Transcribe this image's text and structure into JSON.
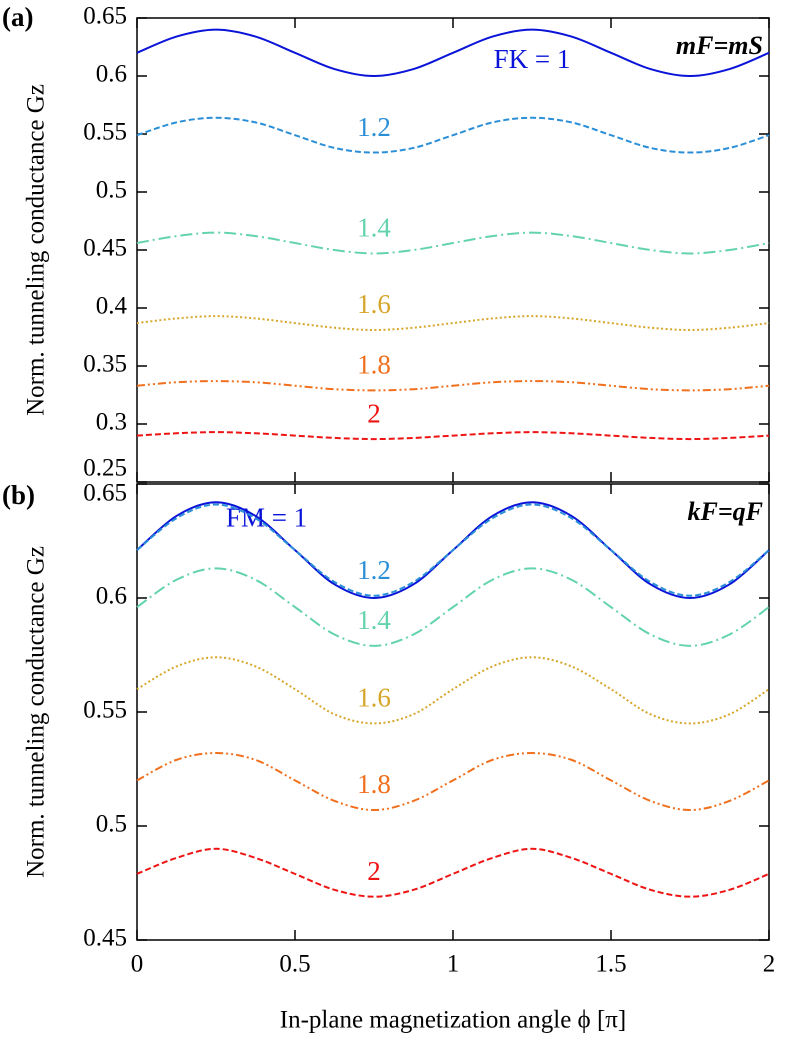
{
  "chart_data": [
    {
      "type": "line",
      "panel_label": "(a)",
      "corner_label": "mF=mS",
      "ylabel": "Norm. tunneling conductance Gz",
      "x": [
        0,
        0.125,
        0.25,
        0.375,
        0.5,
        0.625,
        0.75,
        0.875,
        1,
        1.125,
        1.25,
        1.375,
        1.5,
        1.625,
        1.75,
        1.875,
        2
      ],
      "xlim": [
        0,
        2
      ],
      "xticks": [
        0,
        0.5,
        1,
        1.5,
        2
      ],
      "xtick_labels": false,
      "ylim": [
        0.25,
        0.65
      ],
      "yticks": [
        0.25,
        0.3,
        0.35,
        0.4,
        0.45,
        0.5,
        0.55,
        0.6,
        0.65
      ],
      "series": [
        {
          "name": "FK = 1",
          "color": "#0a14d8",
          "line_style": "solid",
          "values": [
            0.62,
            0.634,
            0.64,
            0.634,
            0.62,
            0.606,
            0.6,
            0.606,
            0.62,
            0.634,
            0.64,
            0.634,
            0.62,
            0.606,
            0.6,
            0.606,
            0.62
          ]
        },
        {
          "name": "1.2",
          "color": "#2b8fd8",
          "line_style": "dashed",
          "values": [
            0.549,
            0.56,
            0.564,
            0.56,
            0.549,
            0.538,
            0.534,
            0.538,
            0.549,
            0.56,
            0.564,
            0.56,
            0.549,
            0.538,
            0.534,
            0.538,
            0.549
          ]
        },
        {
          "name": "1.4",
          "color": "#63d3ad",
          "line_style": "dashdot",
          "values": [
            0.456,
            0.462,
            0.465,
            0.462,
            0.456,
            0.45,
            0.447,
            0.45,
            0.456,
            0.462,
            0.465,
            0.462,
            0.456,
            0.45,
            0.447,
            0.45,
            0.456
          ]
        },
        {
          "name": "1.6",
          "color": "#d6a62a",
          "line_style": "dotted",
          "values": [
            0.387,
            0.391,
            0.393,
            0.391,
            0.387,
            0.383,
            0.381,
            0.383,
            0.387,
            0.391,
            0.393,
            0.391,
            0.387,
            0.383,
            0.381,
            0.383,
            0.387
          ]
        },
        {
          "name": "1.8",
          "color": "#f0701e",
          "line_style": "dashdotdot",
          "values": [
            0.333,
            0.336,
            0.337,
            0.336,
            0.333,
            0.33,
            0.329,
            0.33,
            0.333,
            0.336,
            0.337,
            0.336,
            0.333,
            0.33,
            0.329,
            0.33,
            0.333
          ]
        },
        {
          "name": "2",
          "color": "#ee1414",
          "line_style": "dashed",
          "values": [
            0.29,
            0.292,
            0.293,
            0.292,
            0.29,
            0.288,
            0.287,
            0.288,
            0.29,
            0.292,
            0.293,
            0.292,
            0.29,
            0.288,
            0.287,
            0.288,
            0.29
          ]
        }
      ]
    },
    {
      "type": "line",
      "panel_label": "(b)",
      "corner_label": "kF=qF",
      "ylabel": "Norm. tunneling conductance Gz",
      "xlabel": "In-plane magnetization angle ϕ [π]",
      "x": [
        0,
        0.125,
        0.25,
        0.375,
        0.5,
        0.625,
        0.75,
        0.875,
        1,
        1.125,
        1.25,
        1.375,
        1.5,
        1.625,
        1.75,
        1.875,
        2
      ],
      "xlim": [
        0,
        2
      ],
      "xticks": [
        0,
        0.5,
        1,
        1.5,
        2
      ],
      "xtick_labels": true,
      "ylim": [
        0.45,
        0.65
      ],
      "yticks": [
        0.45,
        0.5,
        0.55,
        0.6,
        0.65
      ],
      "series": [
        {
          "name": "FM = 1",
          "color": "#0a14d8",
          "line_style": "solid",
          "values": [
            0.621,
            0.636,
            0.642,
            0.636,
            0.621,
            0.606,
            0.6,
            0.606,
            0.621,
            0.636,
            0.642,
            0.636,
            0.621,
            0.606,
            0.6,
            0.606,
            0.621
          ]
        },
        {
          "name": "1.2",
          "color": "#2b8fd8",
          "line_style": "dashed",
          "values": [
            0.621,
            0.635,
            0.641,
            0.635,
            0.621,
            0.607,
            0.601,
            0.607,
            0.621,
            0.635,
            0.641,
            0.635,
            0.621,
            0.607,
            0.601,
            0.607,
            0.621
          ]
        },
        {
          "name": "1.4",
          "color": "#63d3ad",
          "line_style": "dashdot",
          "values": [
            0.596,
            0.608,
            0.613,
            0.608,
            0.596,
            0.584,
            0.579,
            0.584,
            0.596,
            0.608,
            0.613,
            0.608,
            0.596,
            0.584,
            0.579,
            0.584,
            0.596
          ]
        },
        {
          "name": "1.6",
          "color": "#d6a62a",
          "line_style": "dotted",
          "values": [
            0.56,
            0.57,
            0.574,
            0.57,
            0.56,
            0.549,
            0.545,
            0.549,
            0.56,
            0.57,
            0.574,
            0.57,
            0.56,
            0.549,
            0.545,
            0.549,
            0.56
          ]
        },
        {
          "name": "1.8",
          "color": "#f0701e",
          "line_style": "dashdotdot",
          "values": [
            0.52,
            0.529,
            0.532,
            0.529,
            0.52,
            0.511,
            0.507,
            0.511,
            0.52,
            0.529,
            0.532,
            0.529,
            0.52,
            0.511,
            0.507,
            0.511,
            0.52
          ]
        },
        {
          "name": "2",
          "color": "#ee1414",
          "line_style": "dashed",
          "values": [
            0.479,
            0.486,
            0.49,
            0.486,
            0.479,
            0.472,
            0.469,
            0.472,
            0.479,
            0.486,
            0.49,
            0.486,
            0.479,
            0.472,
            0.469,
            0.472,
            0.479
          ]
        }
      ]
    }
  ]
}
